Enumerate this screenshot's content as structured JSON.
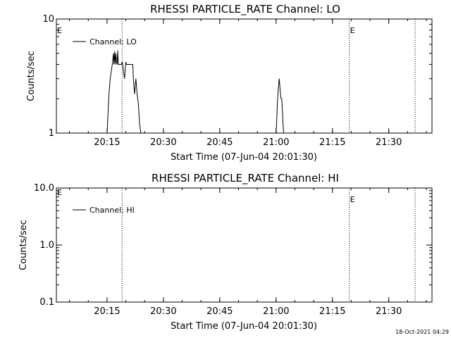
{
  "colors": {
    "background": "#ffffff",
    "foreground": "#000000"
  },
  "timestamp": "18-Oct-2021 04:29",
  "chart_data": [
    {
      "type": "line",
      "title": "RHESSI PARTICLE_RATE Channel: LO",
      "xlabel": "Start Time (07-Jun-04 20:01:30)",
      "ylabel": "Counts/sec",
      "y_scale": "log",
      "ylim": [
        1,
        10
      ],
      "xlim": [
        "20:01:30",
        "21:41:30"
      ],
      "y_ticks": [
        "1",
        "10"
      ],
      "x_ticks": [
        "20:15",
        "20:30",
        "20:45",
        "21:00",
        "21:15",
        "21:30"
      ],
      "legend": {
        "position": "top-left",
        "entries": [
          "Channel: LO"
        ]
      },
      "vlines": [
        {
          "time": "20:19:00",
          "label": ""
        },
        {
          "time": "21:19:30",
          "label": "E"
        },
        {
          "time": "21:37:00",
          "label": ""
        }
      ],
      "edge_labels": [
        {
          "text": "E",
          "position": "top-left"
        }
      ],
      "series": [
        {
          "name": "Channel: LO",
          "x": [
            "20:15:00",
            "20:15:15",
            "20:15:30",
            "20:15:50",
            "20:16:10",
            "20:16:30",
            "20:16:40",
            "20:16:50",
            "20:17:00",
            "20:17:10",
            "20:17:20",
            "20:17:30",
            "20:17:40",
            "20:17:50",
            "20:18:00",
            "20:18:10",
            "20:18:20",
            "20:18:30",
            "20:18:40",
            "20:18:50",
            "20:19:00",
            "20:19:10",
            "20:19:20",
            "20:19:40",
            "20:19:50",
            "20:20:00",
            "20:20:10",
            "20:20:30",
            "20:21:00",
            "20:21:30",
            "20:21:50",
            "20:22:00",
            "20:22:10",
            "20:22:20",
            "20:22:30",
            "20:22:40",
            "20:22:50",
            "20:23:00",
            "20:23:20",
            "20:23:40",
            "20:24:00",
            "20:24:10",
            "21:00:00",
            "21:00:10",
            "21:00:20",
            "21:00:30",
            "21:00:40",
            "21:00:50",
            "21:01:00",
            "21:01:10",
            "21:01:20",
            "21:01:30",
            "21:01:40",
            "21:01:50",
            "21:02:00",
            "21:02:10"
          ],
          "y": [
            1,
            1.5,
            2.2,
            3.0,
            3.6,
            4.2,
            5.0,
            4.0,
            5.2,
            4.0,
            5.0,
            4.2,
            4.0,
            5.3,
            4.0,
            4.0,
            4.0,
            4.0,
            4.0,
            4.0,
            4.2,
            4.0,
            3.5,
            3.0,
            3.6,
            4.2,
            4.0,
            4.0,
            4.0,
            4.0,
            4.0,
            3.0,
            2.5,
            2.2,
            2.6,
            3.0,
            2.6,
            2.2,
            1.8,
            1.2,
            1,
            1,
            1,
            1.3,
            1.8,
            2.3,
            2.6,
            3.0,
            2.6,
            2.2,
            2.0,
            2.0,
            1.6,
            1.2,
            1,
            1
          ]
        }
      ]
    },
    {
      "type": "line",
      "title": "RHESSI PARTICLE_RATE Channel: HI",
      "xlabel": "Start Time (07-Jun-04 20:01:30)",
      "ylabel": "Counts/sec",
      "y_scale": "log",
      "ylim": [
        0.1,
        10
      ],
      "xlim": [
        "20:01:30",
        "21:41:30"
      ],
      "y_ticks": [
        "0.1",
        "1.0",
        "10.0"
      ],
      "x_ticks": [
        "20:15",
        "20:30",
        "20:45",
        "21:00",
        "21:15",
        "21:30"
      ],
      "legend": {
        "position": "top-left",
        "entries": [
          "Channel: HI"
        ]
      },
      "vlines": [
        {
          "time": "20:19:00",
          "label": ""
        },
        {
          "time": "21:19:30",
          "label": "E"
        },
        {
          "time": "21:37:00",
          "label": ""
        }
      ],
      "edge_labels": [
        {
          "text": "E",
          "position": "top-left"
        }
      ],
      "series": [
        {
          "name": "Channel: HI",
          "x": [],
          "y": []
        }
      ]
    }
  ]
}
